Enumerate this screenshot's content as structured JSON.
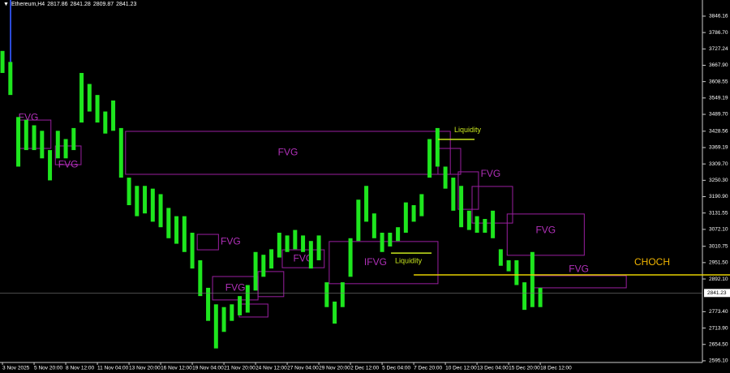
{
  "chart_data": {
    "type": "hilo",
    "symbol": "Ethereum,H4",
    "ohlc": [
      2817.86,
      2841.28,
      2809.87,
      2841.23
    ],
    "x": [
      0,
      16,
      32,
      48,
      64,
      80,
      96,
      112,
      128,
      144,
      160,
      176,
      192,
      208,
      224,
      240,
      256,
      272,
      288,
      304,
      320,
      336,
      352,
      368,
      384,
      400,
      416,
      432,
      448,
      464,
      480,
      496,
      512,
      528,
      544,
      560,
      576,
      592,
      608,
      624,
      640,
      656,
      672,
      688,
      704,
      720,
      736,
      752,
      768,
      784,
      800,
      816,
      832,
      848,
      864,
      880,
      896,
      912,
      928,
      944,
      960,
      976,
      992,
      1008,
      1024,
      1040,
      1056,
      1072,
      1088
    ],
    "series": [
      {
        "color": "#1ee61e",
        "high": [
          3720,
          3680,
          3480,
          3470,
          3450,
          3430,
          3360,
          3430,
          3400,
          3440,
          3640,
          3600,
          3560,
          3500,
          3540,
          3440,
          3260,
          3230,
          3230,
          3220,
          3200,
          3150,
          3120,
          3120,
          3060,
          2960,
          2860,
          2800,
          2790,
          2800,
          2830,
          2870,
          2990,
          2980,
          3000,
          3060,
          3050,
          3070,
          3050,
          3030,
          3050,
          2880,
          2810,
          2880,
          3040,
          3180,
          3230,
          3130,
          3060,
          3060,
          3080,
          3170,
          3160,
          3200,
          3400,
          3440,
          3300,
          3260,
          3230,
          3140,
          3120,
          3110,
          3140,
          3000,
          2960,
          2960,
          2880,
          2990,
          2860
        ],
        "low": [
          3640,
          3560,
          3300,
          3360,
          3360,
          3330,
          3250,
          3330,
          3330,
          3360,
          3460,
          3500,
          3460,
          3420,
          3430,
          3260,
          3160,
          3120,
          3130,
          3100,
          3080,
          3040,
          3020,
          2990,
          2930,
          2830,
          2740,
          2640,
          2700,
          2740,
          2760,
          2770,
          2850,
          2900,
          2930,
          2970,
          2990,
          3000,
          2990,
          2930,
          2960,
          2790,
          2730,
          2790,
          2900,
          3030,
          3100,
          3040,
          2990,
          3010,
          3030,
          3060,
          3100,
          3120,
          3260,
          3300,
          3220,
          3140,
          3080,
          3070,
          3060,
          3060,
          3040,
          2940,
          2920,
          2870,
          2780,
          2790,
          2790
        ]
      }
    ],
    "xlim": [
      -5,
      1416
    ],
    "xticks": [
      {
        "value": 0,
        "label": "3 Nov 2025"
      },
      {
        "value": 64,
        "label": "5 Nov 20:00"
      },
      {
        "value": 128,
        "label": "8 Nov 12:00"
      },
      {
        "value": 192,
        "label": "11 Nov 04:00"
      },
      {
        "value": 256,
        "label": "13 Nov 20:00"
      },
      {
        "value": 320,
        "label": "16 Nov 12:00"
      },
      {
        "value": 384,
        "label": "19 Nov 04:00"
      },
      {
        "value": 448,
        "label": "21 Nov 20:00"
      },
      {
        "value": 512,
        "label": "24 Nov 12:00"
      },
      {
        "value": 576,
        "label": "27 Nov 04:00"
      },
      {
        "value": 640,
        "label": "29 Nov 20:00"
      },
      {
        "value": 704,
        "label": "2 Dec 12:00"
      },
      {
        "value": 768,
        "label": "5 Dec 04:00"
      },
      {
        "value": 832,
        "label": "7 Dec 20:00"
      },
      {
        "value": 896,
        "label": "10 Dec 12:00"
      },
      {
        "value": 960,
        "label": "13 Dec 04:00"
      },
      {
        "value": 1024,
        "label": "15 Dec 20:00"
      },
      {
        "value": 1088,
        "label": "18 Dec 12:00"
      }
    ],
    "ylim": [
      2589,
      3896
    ],
    "yticks": [
      3846.16,
      {
        "value": 3786.7,
        "label": "3786.70"
      },
      3727.24,
      {
        "value": 3667.9,
        "label": "3667.90"
      },
      3608.55,
      3549.19,
      {
        "value": 3489.7,
        "label": "3489.70"
      },
      3428.56,
      3369.19,
      {
        "value": 3309.7,
        "label": "3309.70"
      },
      {
        "value": 3250.3,
        "label": "3250.30"
      },
      {
        "value": 3190.9,
        "label": "3190.90"
      },
      3131.55,
      {
        "value": 3072.1,
        "label": "3072.10"
      },
      3010.75,
      {
        "value": 2951.5,
        "label": "2951.50"
      },
      {
        "value": 2892.1,
        "label": "2892.10"
      },
      {
        "value": 2773.4,
        "label": "2773.40"
      },
      {
        "value": 2713.9,
        "label": "2713.90"
      },
      {
        "value": 2654.5,
        "label": "2654.50"
      },
      {
        "value": 2595.1,
        "label": "2595.10"
      }
    ],
    "price_line": 2841.23,
    "zone_color": "#9a1fa0",
    "zones": [
      {
        "label": "FVG",
        "x0": 33,
        "x1": 98,
        "y0": 3366,
        "y1": 3469
      },
      {
        "label": "FVG",
        "x0": 107,
        "x1": 159,
        "y0": 3307,
        "y1": 3375
      },
      {
        "label": "FVG",
        "x0": 249,
        "x1": 906,
        "y0": 3272,
        "y1": 3428
      },
      {
        "label": "FVG",
        "x0": 394,
        "x1": 437,
        "y0": 2998,
        "y1": 3054
      },
      {
        "label": "FVG",
        "x0": 425,
        "x1": 517,
        "y0": 2816,
        "y1": 2901
      },
      {
        "x0": 479,
        "x1": 537,
        "y0": 2754,
        "y1": 2801
      },
      {
        "x0": 517,
        "x1": 569,
        "y0": 2828,
        "y1": 2919
      },
      {
        "label": "FVG",
        "x0": 566,
        "x1": 651,
        "y0": 2933,
        "y1": 2998
      },
      {
        "label": "IFVG",
        "x0": 661,
        "x1": 881,
        "y0": 2875,
        "y1": 3028
      },
      {
        "x0": 881,
        "x1": 927,
        "y0": 3272,
        "y1": 3366
      },
      {
        "label": "FVG",
        "x0": 922,
        "x1": 963,
        "y0": 3145,
        "y1": 3281
      },
      {
        "x0": 950,
        "x1": 1032,
        "y0": 3095,
        "y1": 3228
      },
      {
        "label": "FVG",
        "x0": 1021,
        "x1": 1177,
        "y0": 2978,
        "y1": 3128
      },
      {
        "label": "FVG",
        "x0": 1070,
        "x1": 1262,
        "y0": 2860,
        "y1": 2904
      }
    ],
    "levels": [
      {
        "label": "Liquidity",
        "color": "#c8e61e",
        "x0": 881,
        "x1": 955,
        "y": 3399
      },
      {
        "label": "Liquidity",
        "color": "#c8e61e",
        "x0": 786,
        "x1": 868,
        "y": 2986
      },
      {
        "label": "CHOCH",
        "color": "#e6d000",
        "x0": 832,
        "y": 2907
      }
    ]
  }
}
